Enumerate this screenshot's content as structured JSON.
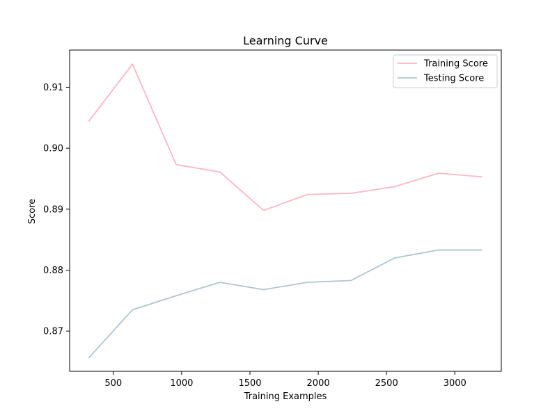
{
  "chart_data": {
    "type": "line",
    "title": "Learning Curve",
    "xlabel": "Training Examples",
    "ylabel": "Score",
    "xlim": [
      180,
      3340
    ],
    "ylim": [
      0.8634,
      0.9161
    ],
    "x_ticks": [
      500,
      1000,
      1500,
      2000,
      2500,
      3000
    ],
    "y_ticks": [
      0.87,
      0.88,
      0.89,
      0.9,
      0.91
    ],
    "y_tick_labels": [
      "0.87",
      "0.88",
      "0.89",
      "0.90",
      "0.91"
    ],
    "grid": false,
    "legend_position": "top-right",
    "x": [
      320,
      640,
      960,
      1280,
      1600,
      1920,
      2240,
      2560,
      2880,
      3200
    ],
    "series": [
      {
        "name": "Training Score",
        "color": "#ffb6c1",
        "values": [
          0.9044,
          0.9138,
          0.8973,
          0.8961,
          0.8898,
          0.8924,
          0.8926,
          0.8937,
          0.8959,
          0.8953
        ]
      },
      {
        "name": "Testing Score",
        "color": "#aec6cf",
        "values": [
          0.8656,
          0.8735,
          0.8758,
          0.878,
          0.8768,
          0.878,
          0.8783,
          0.882,
          0.8833,
          0.8833
        ]
      }
    ]
  }
}
